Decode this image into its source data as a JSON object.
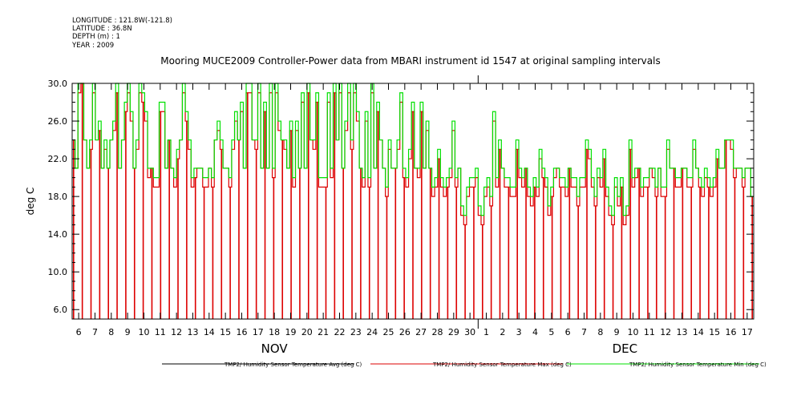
{
  "meta_lines": [
    "LONGITUDE : 121.8W(-121.8)",
    "LATITUDE : 36.8N",
    "DEPTH (m) : 1",
    "YEAR : 2009"
  ],
  "chart_data": {
    "type": "line",
    "title": "Mooring MUCE2009 Controller-Power data from MBARI instrument id 1547 at original sampling intervals",
    "xlabel": "",
    "ylabel": "deg C",
    "ylim": [
      5.0,
      30.0
    ],
    "yticks": [
      6.0,
      10.0,
      14.0,
      18.0,
      22.0,
      26.0,
      30.0
    ],
    "ytick_labels": [
      "6.0",
      "10.0",
      "14.0",
      "18.0",
      "22.0",
      "26.0",
      "30.0"
    ],
    "xlim_day_index": [
      -0.4,
      41.4
    ],
    "x_day_labels": [
      "6",
      "7",
      "8",
      "9",
      "10",
      "11",
      "12",
      "13",
      "14",
      "15",
      "16",
      "17",
      "18",
      "19",
      "20",
      "21",
      "22",
      "23",
      "24",
      "25",
      "26",
      "27",
      "28",
      "29",
      "30",
      "1",
      "2",
      "3",
      "4",
      "5",
      "6",
      "7",
      "8",
      "9",
      "10",
      "11",
      "12",
      "13",
      "14",
      "15",
      "16",
      "17"
    ],
    "months": [
      {
        "label": "NOV",
        "center_day_index": 12
      },
      {
        "label": "DEC",
        "center_day_index": 33.5
      }
    ],
    "grid": false,
    "legend_position": "bottom",
    "series": [
      {
        "name": "TMP2/ Humidity Sensor Temperature Avg (deg C)",
        "color": "#000000",
        "values": []
      },
      {
        "name": "TMP2/ Humidity Sensor Temperature Max (deg C)",
        "color": "#dd0000",
        "values": [
          24,
          21,
          29,
          30,
          24,
          21,
          23,
          29,
          24,
          25,
          21,
          23,
          21,
          24,
          25,
          29,
          21,
          24,
          27,
          29,
          26,
          21,
          23,
          29,
          28,
          26,
          20,
          21,
          19,
          19,
          27,
          27,
          21,
          24,
          21,
          19,
          22,
          24,
          29,
          26,
          23,
          19,
          20,
          21,
          21,
          19,
          19,
          21,
          19,
          24,
          25,
          23,
          21,
          21,
          19,
          23,
          26,
          24,
          27,
          21,
          29,
          29,
          24,
          23,
          29,
          21,
          27,
          21,
          29,
          20,
          29,
          25,
          24,
          23,
          21,
          25,
          19,
          25,
          21,
          28,
          21,
          29,
          24,
          23,
          28,
          19,
          19,
          19,
          28,
          20,
          29,
          24,
          29,
          21,
          25,
          29,
          23,
          29,
          26,
          21,
          19,
          26,
          19,
          29,
          21,
          27,
          24,
          21,
          18,
          23,
          21,
          21,
          23,
          28,
          20,
          19,
          22,
          27,
          21,
          20,
          27,
          21,
          25,
          21,
          18,
          19,
          22,
          19,
          18,
          19,
          20,
          25,
          19,
          21,
          16,
          15,
          18,
          19,
          19,
          20,
          16,
          15,
          18,
          19,
          17,
          26,
          19,
          23,
          21,
          19,
          19,
          18,
          18,
          23,
          20,
          19,
          21,
          18,
          17,
          19,
          18,
          22,
          20,
          19,
          16,
          18,
          20,
          21,
          19,
          19,
          18,
          21,
          19,
          19,
          17,
          19,
          19,
          23,
          22,
          19,
          17,
          20,
          19,
          22,
          18,
          16,
          15,
          19,
          17,
          19,
          15,
          16,
          23,
          19,
          20,
          21,
          18,
          19,
          19,
          21,
          20,
          18,
          21,
          18,
          18,
          23,
          21,
          21,
          19,
          19,
          21,
          21,
          19,
          19,
          23,
          21,
          19,
          18,
          20,
          19,
          18,
          19,
          22,
          21,
          21,
          24,
          24,
          23,
          20,
          21,
          21,
          19,
          21,
          21,
          18
        ]
      },
      {
        "name": "TMP2/ Humidity Sensor Temperature Min (deg C)",
        "color": "#00e000",
        "values": [
          24,
          21,
          30,
          30,
          24,
          21,
          24,
          30,
          24,
          26,
          21,
          24,
          21,
          24,
          26,
          30,
          21,
          24,
          28,
          30,
          27,
          21,
          24,
          30,
          29,
          27,
          21,
          21,
          20,
          20,
          28,
          28,
          21,
          24,
          21,
          20,
          23,
          24,
          30,
          27,
          24,
          20,
          21,
          21,
          21,
          20,
          20,
          21,
          20,
          24,
          26,
          24,
          21,
          21,
          20,
          24,
          27,
          24,
          28,
          21,
          30,
          30,
          24,
          24,
          30,
          21,
          28,
          21,
          30,
          21,
          30,
          26,
          24,
          24,
          21,
          26,
          20,
          26,
          21,
          29,
          21,
          30,
          24,
          24,
          29,
          20,
          20,
          20,
          29,
          21,
          30,
          24,
          30,
          21,
          26,
          30,
          24,
          30,
          27,
          21,
          20,
          27,
          20,
          30,
          21,
          28,
          24,
          21,
          19,
          24,
          21,
          21,
          24,
          29,
          21,
          20,
          23,
          28,
          21,
          21,
          28,
          21,
          26,
          21,
          19,
          20,
          23,
          20,
          19,
          20,
          21,
          26,
          20,
          21,
          17,
          16,
          19,
          20,
          20,
          21,
          17,
          16,
          19,
          20,
          18,
          27,
          20,
          24,
          21,
          20,
          20,
          19,
          19,
          24,
          21,
          20,
          21,
          19,
          18,
          20,
          19,
          23,
          21,
          20,
          17,
          19,
          21,
          21,
          20,
          20,
          19,
          21,
          20,
          20,
          18,
          20,
          20,
          24,
          23,
          20,
          18,
          21,
          20,
          23,
          19,
          17,
          16,
          20,
          18,
          20,
          16,
          17,
          24,
          20,
          21,
          21,
          19,
          20,
          20,
          21,
          21,
          19,
          21,
          19,
          19,
          24,
          21,
          21,
          20,
          20,
          21,
          21,
          20,
          20,
          24,
          21,
          20,
          19,
          21,
          20,
          19,
          20,
          23,
          21,
          21,
          24,
          24,
          24,
          21,
          21,
          21,
          20,
          21,
          21,
          18
        ]
      }
    ]
  }
}
